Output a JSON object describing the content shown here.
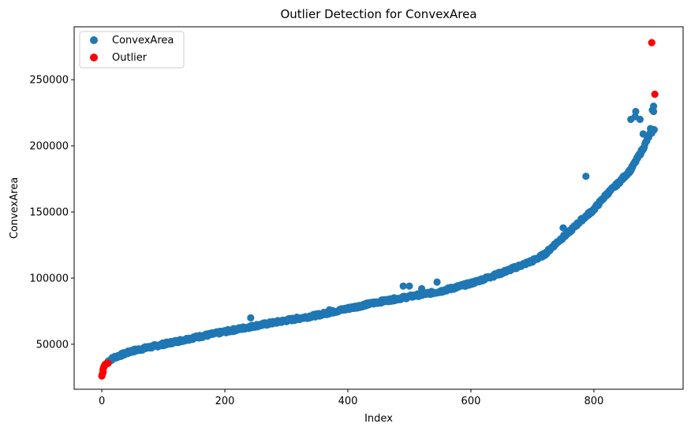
{
  "chart_data": {
    "type": "scatter",
    "title": "Outlier Detection for ConvexArea",
    "xlabel": "Index",
    "ylabel": "ConvexArea",
    "xlim": [
      -45,
      945
    ],
    "ylim": [
      16000,
      290000
    ],
    "xticks": [
      0,
      200,
      400,
      600,
      800
    ],
    "yticks": [
      50000,
      100000,
      150000,
      200000,
      250000
    ],
    "xtick_labels": [
      "0",
      "200",
      "400",
      "600",
      "800"
    ],
    "ytick_labels": [
      "50000",
      "100000",
      "150000",
      "200000",
      "250000"
    ],
    "grid": false,
    "legend_position": "upper-left",
    "n_points": 900,
    "series": [
      {
        "name": "ConvexArea",
        "color": "#1f77b4",
        "trend_anchors": [
          [
            10,
            37000
          ],
          [
            20,
            40000
          ],
          [
            50,
            45000
          ],
          [
            100,
            50000
          ],
          [
            150,
            55000
          ],
          [
            200,
            59500
          ],
          [
            250,
            64000
          ],
          [
            300,
            68000
          ],
          [
            350,
            72000
          ],
          [
            400,
            77000
          ],
          [
            450,
            82000
          ],
          [
            500,
            86000
          ],
          [
            550,
            90000
          ],
          [
            600,
            96000
          ],
          [
            650,
            104000
          ],
          [
            700,
            113000
          ],
          [
            720,
            118000
          ],
          [
            740,
            127000
          ],
          [
            760,
            135000
          ],
          [
            780,
            144000
          ],
          [
            800,
            152000
          ],
          [
            820,
            163000
          ],
          [
            840,
            172000
          ],
          [
            860,
            182000
          ],
          [
            870,
            190000
          ],
          [
            880,
            198000
          ],
          [
            890,
            208000
          ],
          [
            898,
            213000
          ]
        ],
        "extra_points": [
          [
            490,
            94000
          ],
          [
            500,
            94000
          ],
          [
            520,
            92000
          ],
          [
            545,
            97000
          ],
          [
            242,
            70000
          ],
          [
            370,
            76000
          ],
          [
            750,
            138000
          ],
          [
            787,
            177000
          ],
          [
            860,
            220000
          ],
          [
            867,
            222000
          ],
          [
            868,
            226000
          ],
          [
            875,
            220000
          ],
          [
            880,
            209000
          ],
          [
            892,
            213000
          ],
          [
            895,
            227000
          ],
          [
            897,
            230000
          ],
          [
            897,
            226000
          ]
        ]
      },
      {
        "name": "Outlier",
        "color": "#ff0000",
        "points": [
          [
            0,
            26000
          ],
          [
            1,
            27500
          ],
          [
            2,
            29000
          ],
          [
            2,
            31000
          ],
          [
            3,
            32500
          ],
          [
            4,
            33500
          ],
          [
            5,
            34500
          ],
          [
            6,
            35000
          ],
          [
            8,
            35300
          ],
          [
            10,
            35500
          ],
          [
            894,
            278000
          ],
          [
            899,
            239000
          ]
        ]
      }
    ]
  }
}
